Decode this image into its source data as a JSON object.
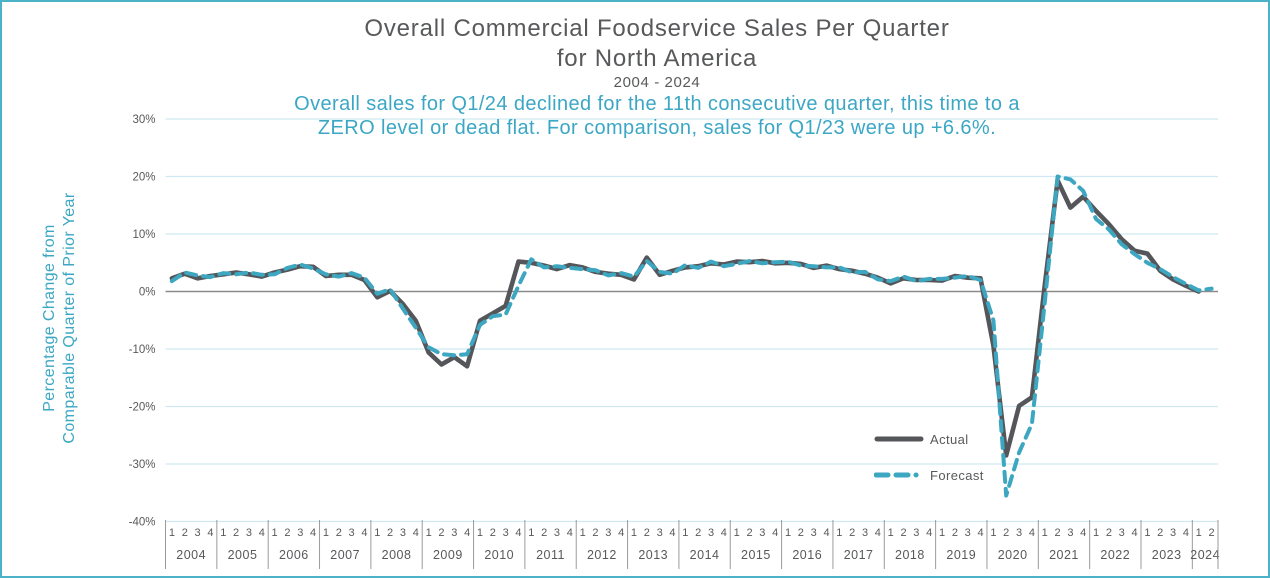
{
  "colors": {
    "accent_teal": "#3DA6C0",
    "subtitle_teal": "#3BA7C4",
    "dark_gray": "#54565A",
    "frame_border": "#4CB2C7",
    "gridline_blue": "#CFE9F2",
    "zero_line_gray": "#8A8A8A",
    "axis_text": "#58595B"
  },
  "title": {
    "line1": "Overall Commercial Foodservice Sales Per Quarter",
    "line2": "for North America",
    "date_range": "2004 - 2024"
  },
  "subtitle": {
    "line1": "Overall sales for Q1/24 declined for the 11th consecutive quarter, this time to a",
    "line2": "ZERO level or dead flat. For comparison,  sales for Q1/23 were up +6.6%."
  },
  "y_axis": {
    "label_line1": "Percentage Change from",
    "label_line2": "Comparable Quarter of Prior Year",
    "ticks": [
      "30%",
      "20%",
      "10%",
      "0%",
      "-10%",
      "-20%",
      "-30%",
      "-40%"
    ]
  },
  "legend": {
    "actual_label": "Actual",
    "forecast_label": "Forecast"
  },
  "chart_data": {
    "type": "line",
    "title": "Overall Commercial Foodservice Sales Per Quarter for North America 2004 - 2024",
    "ylabel": "Percentage Change from Comparable Quarter of Prior Year",
    "ylim": [
      -40,
      30
    ],
    "ytick_values": [
      30,
      20,
      10,
      0,
      -10,
      -20,
      -30,
      -40
    ],
    "grid": true,
    "legend_position": "inside-right-bottom",
    "x_years": [
      {
        "year": "2004",
        "quarters": [
          "1",
          "2",
          "3",
          "4"
        ]
      },
      {
        "year": "2005",
        "quarters": [
          "1",
          "2",
          "3",
          "4"
        ]
      },
      {
        "year": "2006",
        "quarters": [
          "1",
          "2",
          "3",
          "4"
        ]
      },
      {
        "year": "2007",
        "quarters": [
          "1",
          "2",
          "3",
          "4"
        ]
      },
      {
        "year": "2008",
        "quarters": [
          "1",
          "2",
          "3",
          "4"
        ]
      },
      {
        "year": "2009",
        "quarters": [
          "1",
          "2",
          "3",
          "4"
        ]
      },
      {
        "year": "2010",
        "quarters": [
          "1",
          "2",
          "3",
          "4"
        ]
      },
      {
        "year": "2011",
        "quarters": [
          "1",
          "2",
          "3",
          "4"
        ]
      },
      {
        "year": "2012",
        "quarters": [
          "1",
          "2",
          "3",
          "4"
        ]
      },
      {
        "year": "2013",
        "quarters": [
          "1",
          "2",
          "3",
          "4"
        ]
      },
      {
        "year": "2014",
        "quarters": [
          "1",
          "2",
          "3",
          "4"
        ]
      },
      {
        "year": "2015",
        "quarters": [
          "1",
          "2",
          "3",
          "4"
        ]
      },
      {
        "year": "2016",
        "quarters": [
          "1",
          "2",
          "3",
          "4"
        ]
      },
      {
        "year": "2017",
        "quarters": [
          "1",
          "2",
          "3",
          "4"
        ]
      },
      {
        "year": "2018",
        "quarters": [
          "1",
          "2",
          "3",
          "4"
        ]
      },
      {
        "year": "2019",
        "quarters": [
          "1",
          "2",
          "3",
          "4"
        ]
      },
      {
        "year": "2020",
        "quarters": [
          "1",
          "2",
          "3",
          "4"
        ]
      },
      {
        "year": "2021",
        "quarters": [
          "1",
          "2",
          "3",
          "4"
        ]
      },
      {
        "year": "2022",
        "quarters": [
          "1",
          "2",
          "3",
          "4"
        ]
      },
      {
        "year": "2023",
        "quarters": [
          "1",
          "2",
          "3",
          "4"
        ]
      },
      {
        "year": "2024",
        "quarters": [
          "1",
          "2"
        ]
      }
    ],
    "series": [
      {
        "name": "Actual",
        "color": "#54565A",
        "style": "solid",
        "values": [
          2.3,
          3.1,
          2.3,
          2.7,
          3.0,
          3.3,
          3.0,
          2.6,
          3.3,
          3.8,
          4.4,
          4.3,
          2.7,
          2.9,
          2.9,
          2.0,
          -1.0,
          0.1,
          -2.2,
          -5.1,
          -10.6,
          -12.7,
          -11.4,
          -13.0,
          -5.1,
          -3.8,
          -2.5,
          5.2,
          5.0,
          4.5,
          3.9,
          4.6,
          4.2,
          3.4,
          3.1,
          2.9,
          2.1,
          5.9,
          2.9,
          3.6,
          4.2,
          4.4,
          4.9,
          4.7,
          5.2,
          5.1,
          5.3,
          4.9,
          5.0,
          4.8,
          4.1,
          4.5,
          3.9,
          3.6,
          3.1,
          2.4,
          1.4,
          2.3,
          2.0,
          2.0,
          1.9,
          2.7,
          2.4,
          2.3,
          -9.4,
          -28.5,
          -19.9,
          -18.4,
          1.0,
          19.3,
          14.6,
          16.5,
          14.0,
          11.7,
          9.1,
          7.1,
          6.6,
          3.6,
          2.1,
          1.0,
          0.0,
          null
        ]
      },
      {
        "name": "Forecast",
        "color": "#3DA6C0",
        "style": "dashed",
        "values": [
          1.8,
          3.3,
          2.8,
          2.5,
          3.2,
          3.0,
          3.3,
          2.9,
          3.0,
          4.1,
          4.7,
          4.0,
          3.0,
          2.6,
          3.2,
          2.4,
          -0.4,
          0.4,
          -3.0,
          -6.3,
          -9.7,
          -10.9,
          -11.1,
          -10.9,
          -5.8,
          -4.3,
          -4.0,
          1.0,
          5.6,
          4.2,
          4.4,
          4.1,
          3.9,
          3.7,
          2.8,
          3.2,
          2.6,
          5.3,
          3.4,
          3.1,
          4.6,
          4.1,
          5.2,
          4.4,
          4.8,
          5.3,
          4.9,
          5.1,
          5.2,
          4.5,
          4.4,
          4.2,
          4.2,
          3.3,
          3.4,
          2.1,
          1.8,
          2.6,
          1.8,
          2.2,
          2.2,
          2.4,
          2.7,
          2.0,
          -5.0,
          -35.5,
          -28.0,
          -23.0,
          -2.0,
          20.0,
          19.5,
          17.5,
          12.6,
          10.8,
          8.2,
          6.5,
          5.0,
          3.9,
          2.5,
          1.3,
          0.2,
          0.5
        ]
      }
    ]
  }
}
